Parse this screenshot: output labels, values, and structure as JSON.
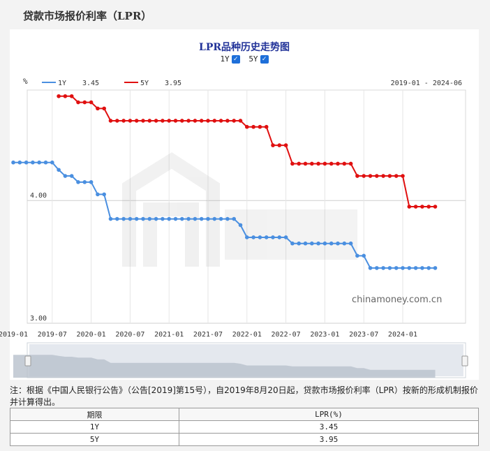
{
  "page": {
    "title": "贷款市场报价利率（LPR）",
    "note": "注：根据《中国人民银行公告》（公告[2019]第15号），自2019年8月20日起，贷款市场报价利率（LPR）按新的形成机制报价并计算得出。"
  },
  "toggles": [
    {
      "label": "1Y",
      "checked": true
    },
    {
      "label": "5Y",
      "checked": true
    }
  ],
  "legend": [
    {
      "name": "1Y",
      "value": "3.45",
      "color": "#4a8fe0"
    },
    {
      "name": "5Y",
      "value": "3.95",
      "color": "#e01010"
    }
  ],
  "watermark": "chinamoney.com.cn",
  "chart_data": {
    "type": "line",
    "title": "LPR品种历史走势图",
    "ylabel": "%",
    "range_label": "2019-01 - 2024-06",
    "ylim": [
      3.0,
      4.9
    ],
    "y_ticks": [
      "4.00",
      "3.00"
    ],
    "x_ticks": [
      "2019-01",
      "2019-07",
      "2020-01",
      "2020-07",
      "2021-01",
      "2021-07",
      "2022-01",
      "2022-07",
      "2023-01",
      "2023-07",
      "2024-01"
    ],
    "grid": true,
    "legend_position": "top-left",
    "series": [
      {
        "name": "1Y",
        "color": "#4a8fe0",
        "points": [
          [
            "2019-01",
            4.31
          ],
          [
            "2019-02",
            4.31
          ],
          [
            "2019-03",
            4.31
          ],
          [
            "2019-04",
            4.31
          ],
          [
            "2019-05",
            4.31
          ],
          [
            "2019-06",
            4.31
          ],
          [
            "2019-07",
            4.31
          ],
          [
            "2019-08",
            4.25
          ],
          [
            "2019-09",
            4.2
          ],
          [
            "2019-10",
            4.2
          ],
          [
            "2019-11",
            4.15
          ],
          [
            "2019-12",
            4.15
          ],
          [
            "2020-01",
            4.15
          ],
          [
            "2020-02",
            4.05
          ],
          [
            "2020-03",
            4.05
          ],
          [
            "2020-04",
            3.85
          ],
          [
            "2020-05",
            3.85
          ],
          [
            "2020-06",
            3.85
          ],
          [
            "2020-07",
            3.85
          ],
          [
            "2020-08",
            3.85
          ],
          [
            "2020-09",
            3.85
          ],
          [
            "2020-10",
            3.85
          ],
          [
            "2020-11",
            3.85
          ],
          [
            "2020-12",
            3.85
          ],
          [
            "2021-01",
            3.85
          ],
          [
            "2021-02",
            3.85
          ],
          [
            "2021-03",
            3.85
          ],
          [
            "2021-04",
            3.85
          ],
          [
            "2021-05",
            3.85
          ],
          [
            "2021-06",
            3.85
          ],
          [
            "2021-07",
            3.85
          ],
          [
            "2021-08",
            3.85
          ],
          [
            "2021-09",
            3.85
          ],
          [
            "2021-10",
            3.85
          ],
          [
            "2021-11",
            3.85
          ],
          [
            "2021-12",
            3.8
          ],
          [
            "2022-01",
            3.7
          ],
          [
            "2022-02",
            3.7
          ],
          [
            "2022-03",
            3.7
          ],
          [
            "2022-04",
            3.7
          ],
          [
            "2022-05",
            3.7
          ],
          [
            "2022-06",
            3.7
          ],
          [
            "2022-07",
            3.7
          ],
          [
            "2022-08",
            3.65
          ],
          [
            "2022-09",
            3.65
          ],
          [
            "2022-10",
            3.65
          ],
          [
            "2022-11",
            3.65
          ],
          [
            "2022-12",
            3.65
          ],
          [
            "2023-01",
            3.65
          ],
          [
            "2023-02",
            3.65
          ],
          [
            "2023-03",
            3.65
          ],
          [
            "2023-04",
            3.65
          ],
          [
            "2023-05",
            3.65
          ],
          [
            "2023-06",
            3.55
          ],
          [
            "2023-07",
            3.55
          ],
          [
            "2023-08",
            3.45
          ],
          [
            "2023-09",
            3.45
          ],
          [
            "2023-10",
            3.45
          ],
          [
            "2023-11",
            3.45
          ],
          [
            "2023-12",
            3.45
          ],
          [
            "2024-01",
            3.45
          ],
          [
            "2024-02",
            3.45
          ],
          [
            "2024-03",
            3.45
          ],
          [
            "2024-04",
            3.45
          ],
          [
            "2024-05",
            3.45
          ],
          [
            "2024-06",
            3.45
          ]
        ]
      },
      {
        "name": "5Y",
        "color": "#e01010",
        "points": [
          [
            "2019-08",
            4.85
          ],
          [
            "2019-09",
            4.85
          ],
          [
            "2019-10",
            4.85
          ],
          [
            "2019-11",
            4.8
          ],
          [
            "2019-12",
            4.8
          ],
          [
            "2020-01",
            4.8
          ],
          [
            "2020-02",
            4.75
          ],
          [
            "2020-03",
            4.75
          ],
          [
            "2020-04",
            4.65
          ],
          [
            "2020-05",
            4.65
          ],
          [
            "2020-06",
            4.65
          ],
          [
            "2020-07",
            4.65
          ],
          [
            "2020-08",
            4.65
          ],
          [
            "2020-09",
            4.65
          ],
          [
            "2020-10",
            4.65
          ],
          [
            "2020-11",
            4.65
          ],
          [
            "2020-12",
            4.65
          ],
          [
            "2021-01",
            4.65
          ],
          [
            "2021-02",
            4.65
          ],
          [
            "2021-03",
            4.65
          ],
          [
            "2021-04",
            4.65
          ],
          [
            "2021-05",
            4.65
          ],
          [
            "2021-06",
            4.65
          ],
          [
            "2021-07",
            4.65
          ],
          [
            "2021-08",
            4.65
          ],
          [
            "2021-09",
            4.65
          ],
          [
            "2021-10",
            4.65
          ],
          [
            "2021-11",
            4.65
          ],
          [
            "2021-12",
            4.65
          ],
          [
            "2022-01",
            4.6
          ],
          [
            "2022-02",
            4.6
          ],
          [
            "2022-03",
            4.6
          ],
          [
            "2022-04",
            4.6
          ],
          [
            "2022-05",
            4.45
          ],
          [
            "2022-06",
            4.45
          ],
          [
            "2022-07",
            4.45
          ],
          [
            "2022-08",
            4.3
          ],
          [
            "2022-09",
            4.3
          ],
          [
            "2022-10",
            4.3
          ],
          [
            "2022-11",
            4.3
          ],
          [
            "2022-12",
            4.3
          ],
          [
            "2023-01",
            4.3
          ],
          [
            "2023-02",
            4.3
          ],
          [
            "2023-03",
            4.3
          ],
          [
            "2023-04",
            4.3
          ],
          [
            "2023-05",
            4.3
          ],
          [
            "2023-06",
            4.2
          ],
          [
            "2023-07",
            4.2
          ],
          [
            "2023-08",
            4.2
          ],
          [
            "2023-09",
            4.2
          ],
          [
            "2023-10",
            4.2
          ],
          [
            "2023-11",
            4.2
          ],
          [
            "2023-12",
            4.2
          ],
          [
            "2024-01",
            4.2
          ],
          [
            "2024-02",
            3.95
          ],
          [
            "2024-03",
            3.95
          ],
          [
            "2024-04",
            3.95
          ],
          [
            "2024-05",
            3.95
          ],
          [
            "2024-06",
            3.95
          ]
        ]
      }
    ]
  },
  "table": {
    "headers": [
      "期限",
      "LPR(%)"
    ],
    "rows": [
      [
        "1Y",
        "3.45"
      ],
      [
        "5Y",
        "3.95"
      ]
    ]
  }
}
